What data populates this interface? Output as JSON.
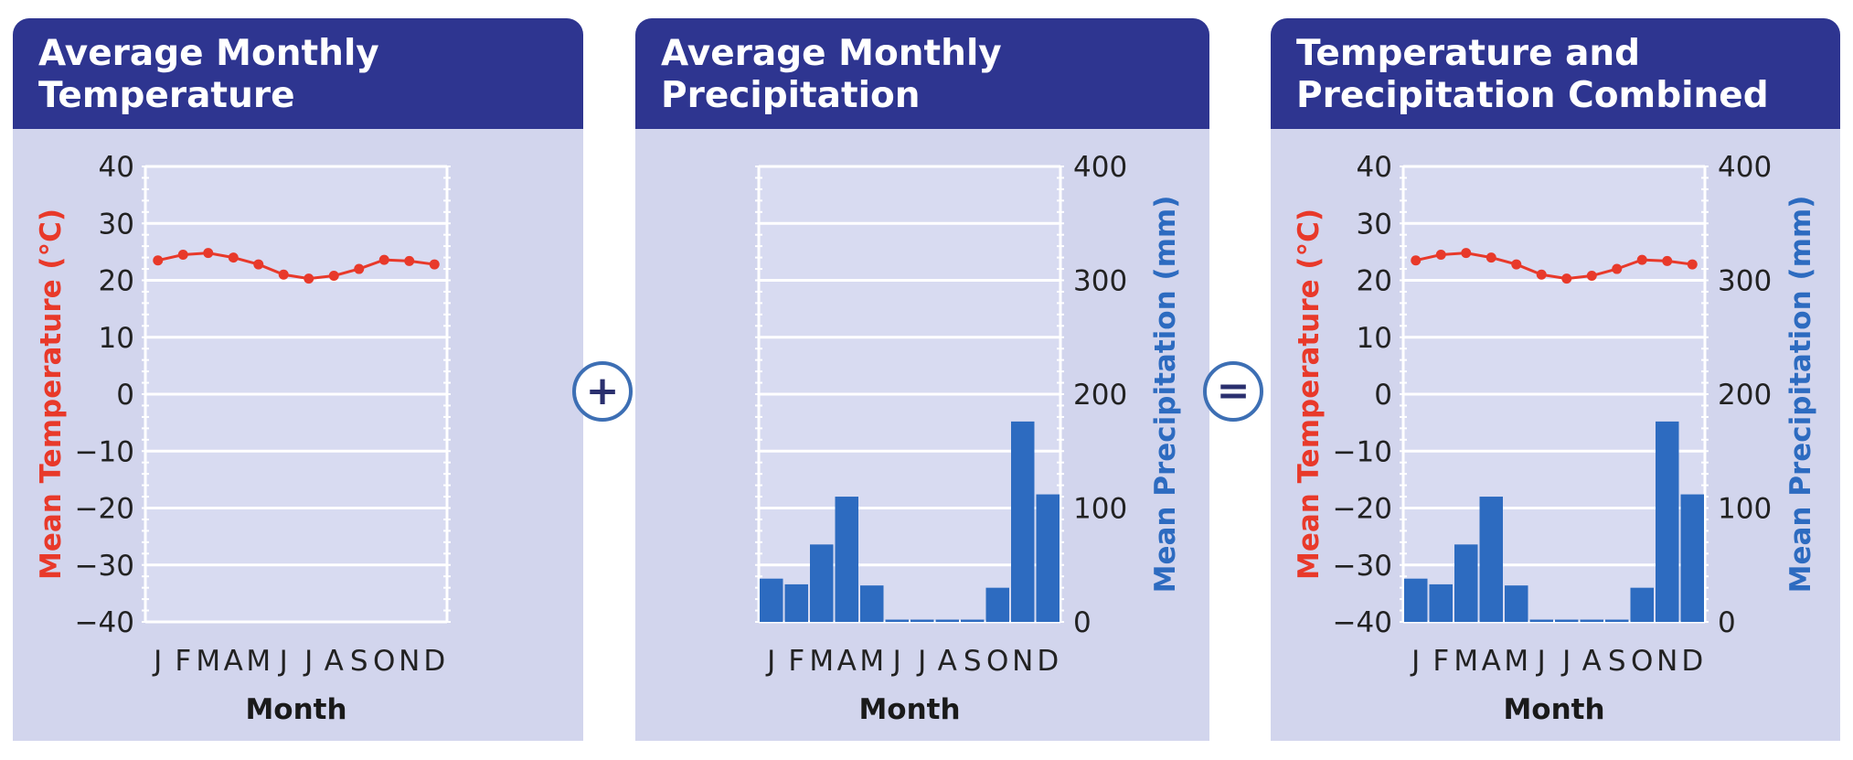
{
  "colors": {
    "panel_header": "#2e3590",
    "panel_bg": "#d2d5ed",
    "temperature": "#e8392a",
    "precipitation": "#2d6bc0",
    "operator_ring": "#3d6fb4"
  },
  "operators": {
    "plus": "+",
    "equals": "="
  },
  "panels": [
    {
      "title_lines": [
        "Average Monthly",
        "Temperature"
      ]
    },
    {
      "title_lines": [
        "Average Monthly",
        "Precipitation"
      ]
    },
    {
      "title_lines": [
        "Temperature and",
        "Precipitation Combined"
      ]
    }
  ],
  "chart_data": [
    {
      "type": "line",
      "title": "Average Monthly Temperature",
      "categories": [
        "J",
        "F",
        "M",
        "A",
        "M",
        "J",
        "J",
        "A",
        "S",
        "O",
        "N",
        "D"
      ],
      "xlabel": "Month",
      "ylabel": "Mean Temperature (°C)",
      "ylim": [
        -40,
        40
      ],
      "yticks": [
        40,
        30,
        20,
        10,
        0,
        -10,
        -20,
        -30,
        -40
      ],
      "grid": true,
      "series": [
        {
          "values": [
            23.5,
            24.5,
            24.8,
            24.0,
            22.8,
            21.0,
            20.3,
            20.8,
            22.0,
            23.6,
            23.4,
            22.8
          ]
        }
      ]
    },
    {
      "type": "bar",
      "title": "Average Monthly Precipitation",
      "categories": [
        "J",
        "F",
        "M",
        "A",
        "M",
        "J",
        "J",
        "A",
        "S",
        "O",
        "N",
        "D"
      ],
      "xlabel": "Month",
      "ylabel": "Mean Precipitation (mm)",
      "ylim": [
        0,
        400
      ],
      "yticks": [
        400,
        300,
        200,
        100,
        0
      ],
      "grid": true,
      "series": [
        {
          "values": [
            38,
            33,
            68,
            110,
            32,
            2,
            2,
            2,
            2,
            30,
            176,
            112
          ]
        }
      ]
    },
    {
      "type": "bar+line",
      "title": "Temperature and Precipitation Combined",
      "categories": [
        "J",
        "F",
        "M",
        "A",
        "M",
        "J",
        "J",
        "A",
        "S",
        "O",
        "N",
        "D"
      ],
      "xlabel": "Month",
      "ylabel_left": "Mean Temperature (°C)",
      "ylabel_right": "Mean Precipitation (mm)",
      "ylim_left": [
        -40,
        40
      ],
      "ylim_right": [
        0,
        400
      ],
      "yticks_left": [
        40,
        30,
        20,
        10,
        0,
        -10,
        -20,
        -30,
        -40
      ],
      "yticks_right": [
        400,
        300,
        200,
        100,
        0
      ],
      "grid": true,
      "series": [
        {
          "type": "bar",
          "axis": "right",
          "values": [
            38,
            33,
            68,
            110,
            32,
            2,
            2,
            2,
            2,
            30,
            176,
            112
          ]
        },
        {
          "type": "line",
          "axis": "left",
          "values": [
            23.5,
            24.5,
            24.8,
            24.0,
            22.8,
            21.0,
            20.3,
            20.8,
            22.0,
            23.6,
            23.4,
            22.8
          ]
        }
      ]
    }
  ]
}
